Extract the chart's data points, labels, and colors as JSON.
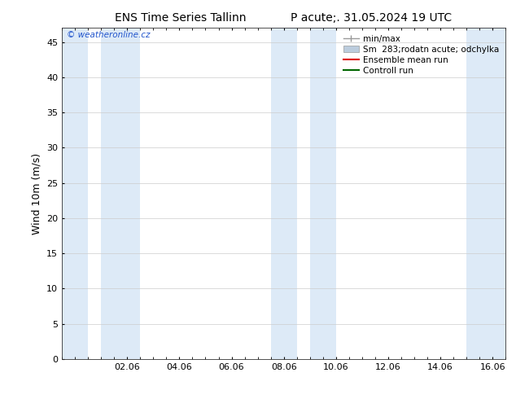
{
  "title_left": "ENS Time Series Tallinn",
  "title_right": "P acute;. 31.05.2024 19 UTC",
  "ylabel": "Wind 10m (m/s)",
  "watermark": "© weatheronline.cz",
  "ylim": [
    0,
    47
  ],
  "yticks": [
    0,
    5,
    10,
    15,
    20,
    25,
    30,
    35,
    40,
    45
  ],
  "xlim": [
    -0.5,
    16.5
  ],
  "xtick_positions": [
    2,
    4,
    6,
    8,
    10,
    12,
    14,
    16
  ],
  "xtick_labels": [
    "02.06",
    "04.06",
    "06.06",
    "08.06",
    "10.06",
    "12.06",
    "14.06",
    "16.06"
  ],
  "background_color": "#ffffff",
  "plot_bg_color": "#ffffff",
  "shaded_band_color": "#ddeaf7",
  "shaded_bands_x": [
    [
      -0.5,
      0.5
    ],
    [
      1.0,
      2.5
    ],
    [
      7.5,
      8.5
    ],
    [
      9.0,
      10.0
    ],
    [
      15.0,
      16.5
    ]
  ],
  "legend_labels": [
    "min/max",
    "Sm  283;rodatn acute; odchylka",
    "Ensemble mean run",
    "Controll run"
  ],
  "legend_colors_line": [
    "#999999",
    "#bbccdd",
    "#dd0000",
    "#006600"
  ],
  "title_fontsize": 10,
  "tick_fontsize": 8,
  "label_fontsize": 9,
  "legend_fontsize": 7.5
}
